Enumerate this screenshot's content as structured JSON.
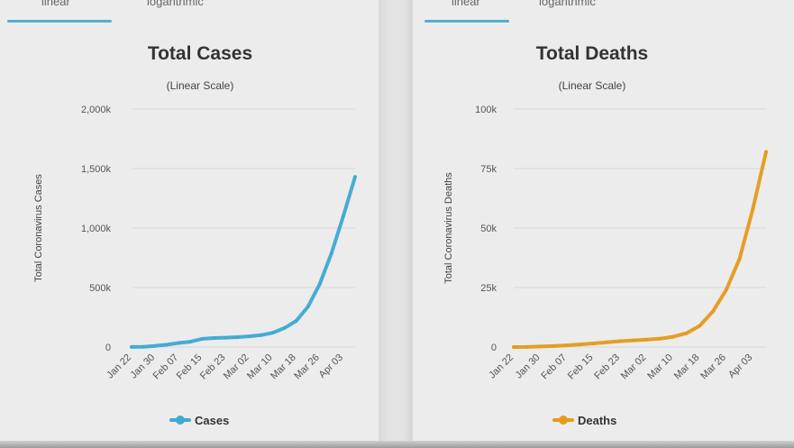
{
  "tabs": {
    "left": [
      {
        "label": "linear"
      },
      {
        "label": "logarithmic"
      }
    ],
    "right": [
      {
        "label": "linear"
      },
      {
        "label": "logarithmic"
      }
    ]
  },
  "colors": {
    "tab_accent": "#4bb3cf",
    "cases": "#3ea9d3",
    "deaths": "#e69a1c"
  },
  "chart_data": [
    {
      "type": "line",
      "title": "Total Cases",
      "subtitle": "(Linear Scale)",
      "ylabel": "Total Coronavirus Cases",
      "ylim": [
        0,
        2000000
      ],
      "yticks": [
        0,
        500000,
        1000000,
        1500000,
        2000000
      ],
      "ytick_labels": [
        "0",
        "500k",
        "1,000k",
        "1,500k",
        "2,000k"
      ],
      "xtick_labels": [
        "Jan 22",
        "Jan 30",
        "Feb 07",
        "Feb 15",
        "Feb 23",
        "Mar 02",
        "Mar 10",
        "Mar 18",
        "Mar 26",
        "Apr 03"
      ],
      "x_start": "Jan 22",
      "x_end": "Apr 07",
      "grid": true,
      "legend_position": "bottom",
      "series": [
        {
          "name": "Cases",
          "color": "#3ea9d3",
          "x": [
            "Jan 22",
            "Jan 26",
            "Jan 30",
            "Feb 03",
            "Feb 07",
            "Feb 11",
            "Feb 15",
            "Feb 19",
            "Feb 23",
            "Feb 27",
            "Mar 02",
            "Mar 06",
            "Mar 10",
            "Mar 14",
            "Mar 18",
            "Mar 22",
            "Mar 26",
            "Mar 30",
            "Apr 03",
            "Apr 07"
          ],
          "values": [
            600,
            2100,
            9900,
            20000,
            34000,
            45000,
            69000,
            76000,
            79000,
            83000,
            90000,
            100000,
            120000,
            160000,
            220000,
            340000,
            530000,
            790000,
            1100000,
            1430000
          ]
        }
      ]
    },
    {
      "type": "line",
      "title": "Total Deaths",
      "subtitle": "(Linear Scale)",
      "ylabel": "Total Coronavirus Deaths",
      "ylim": [
        0,
        100000
      ],
      "yticks": [
        0,
        25000,
        50000,
        75000,
        100000
      ],
      "ytick_labels": [
        "0",
        "25k",
        "50k",
        "75k",
        "100k"
      ],
      "xtick_labels": [
        "Jan 22",
        "Jan 30",
        "Feb 07",
        "Feb 15",
        "Feb 23",
        "Mar 02",
        "Mar 10",
        "Mar 18",
        "Mar 26",
        "Apr 03"
      ],
      "x_start": "Jan 22",
      "x_end": "Apr 07",
      "grid": true,
      "legend_position": "bottom",
      "series": [
        {
          "name": "Deaths",
          "color": "#e69a1c",
          "x": [
            "Jan 22",
            "Jan 26",
            "Jan 30",
            "Feb 03",
            "Feb 07",
            "Feb 11",
            "Feb 15",
            "Feb 19",
            "Feb 23",
            "Feb 27",
            "Mar 02",
            "Mar 06",
            "Mar 10",
            "Mar 14",
            "Mar 18",
            "Mar 22",
            "Mar 26",
            "Mar 30",
            "Apr 03",
            "Apr 07"
          ],
          "values": [
            17,
            56,
            213,
            427,
            720,
            1100,
            1500,
            2000,
            2460,
            2800,
            3100,
            3500,
            4300,
            5800,
            8900,
            15000,
            24000,
            37000,
            58000,
            82000
          ]
        }
      ]
    }
  ]
}
